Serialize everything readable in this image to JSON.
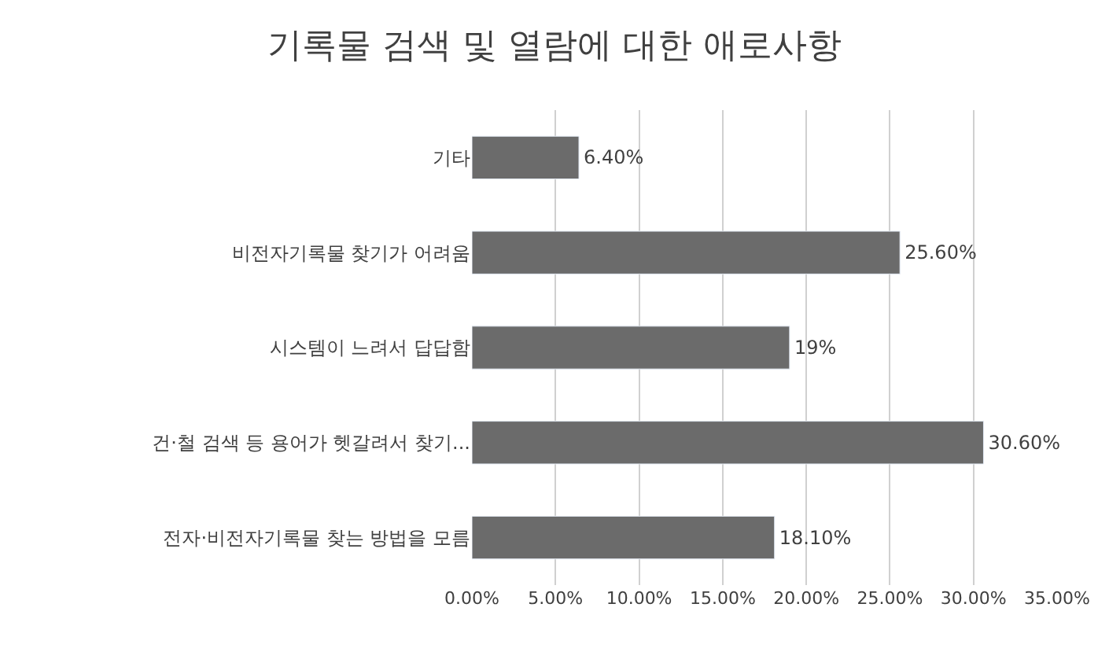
{
  "chart_data": {
    "type": "bar",
    "orientation": "horizontal",
    "title": "기록물 검색 및 열람에 대한 애로사항",
    "categories": [
      "기타",
      "비전자기록물 찾기가 어려움",
      "시스템이 느려서 답답함",
      "건·철 검색 등 용어가 헷갈려서 찾기...",
      "전자·비전자기록물 찾는 방법을 모름"
    ],
    "values": [
      6.4,
      25.6,
      19,
      30.6,
      18.1
    ],
    "value_labels": [
      "6.40%",
      "25.60%",
      "19%",
      "30.60%",
      "18.10%"
    ],
    "color": "#6b6b6b",
    "xlim": [
      0,
      35
    ],
    "xticks": [
      {
        "value": 0,
        "label": "0.00%"
      },
      {
        "value": 5,
        "label": "5.00%"
      },
      {
        "value": 10,
        "label": "10.00%"
      },
      {
        "value": 15,
        "label": "15.00%"
      },
      {
        "value": 20,
        "label": "20.00%"
      },
      {
        "value": 25,
        "label": "25.00%"
      },
      {
        "value": 30,
        "label": "30.00%"
      },
      {
        "value": 35,
        "label": "35.00%"
      }
    ],
    "grid": "x",
    "legend": false
  }
}
